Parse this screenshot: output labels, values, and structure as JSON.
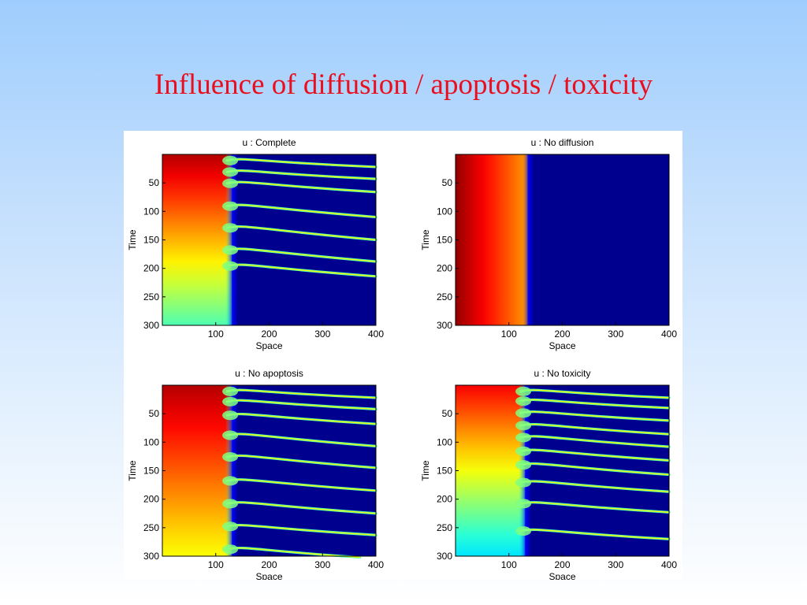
{
  "slide": {
    "title": "Influence of diffusion / apoptosis / toxicity",
    "title_color": "#e8101f"
  },
  "colormap": [
    "#00008f",
    "#0000ff",
    "#0080ff",
    "#00ffff",
    "#80ff80",
    "#ffff00",
    "#ff8000",
    "#ff0000",
    "#800000"
  ],
  "chart_data": [
    {
      "type": "heatmap",
      "title": "u : Complete",
      "xlabel": "Space",
      "ylabel": "Time",
      "xlim": [
        0,
        400
      ],
      "ylim": [
        0,
        300
      ],
      "xticks": [
        100,
        200,
        300,
        400
      ],
      "yticks": [
        50,
        100,
        150,
        200,
        250,
        300
      ],
      "y_reversed": true,
      "grid": false,
      "front_position": 130,
      "background_level": 0.0,
      "left_region": {
        "top_level": 0.95,
        "bottom_level": 0.45
      },
      "bands": [
        {
          "time": 15,
          "end_space": 400,
          "end_time": 22
        },
        {
          "time": 35,
          "end_space": 400,
          "end_time": 43
        },
        {
          "time": 55,
          "end_space": 400,
          "end_time": 66
        },
        {
          "time": 95,
          "end_space": 400,
          "end_time": 110
        },
        {
          "time": 133,
          "end_space": 400,
          "end_time": 150
        },
        {
          "time": 172,
          "end_space": 400,
          "end_time": 188
        },
        {
          "time": 200,
          "end_space": 400,
          "end_time": 214
        }
      ]
    },
    {
      "type": "heatmap",
      "title": "u : No diffusion",
      "xlabel": "Space",
      "ylabel": "Time",
      "xlim": [
        0,
        400
      ],
      "ylim": [
        0,
        300
      ],
      "xticks": [
        100,
        200,
        300,
        400
      ],
      "yticks": [
        50,
        100,
        150,
        200,
        250,
        300
      ],
      "y_reversed": true,
      "grid": false,
      "front_position": 135,
      "background_level": 0.0,
      "vertical_gradient": {
        "left_level": 0.98,
        "right_level": 0.72
      },
      "bands": []
    },
    {
      "type": "heatmap",
      "title": "u : No apoptosis",
      "xlabel": "Space",
      "ylabel": "Time",
      "xlim": [
        0,
        400
      ],
      "ylim": [
        0,
        300
      ],
      "xticks": [
        100,
        200,
        300,
        400
      ],
      "yticks": [
        50,
        100,
        150,
        200,
        250,
        300
      ],
      "y_reversed": true,
      "grid": false,
      "front_position": 130,
      "background_level": 0.0,
      "left_region": {
        "top_level": 0.95,
        "bottom_level": 0.62
      },
      "bands": [
        {
          "time": 15,
          "end_space": 400,
          "end_time": 22
        },
        {
          "time": 33,
          "end_space": 400,
          "end_time": 42
        },
        {
          "time": 57,
          "end_space": 400,
          "end_time": 68
        },
        {
          "time": 92,
          "end_space": 400,
          "end_time": 107
        },
        {
          "time": 130,
          "end_space": 400,
          "end_time": 145
        },
        {
          "time": 172,
          "end_space": 400,
          "end_time": 185
        },
        {
          "time": 212,
          "end_space": 400,
          "end_time": 225
        },
        {
          "time": 252,
          "end_space": 400,
          "end_time": 263
        },
        {
          "time": 292,
          "end_space": 370,
          "end_time": 302
        }
      ]
    },
    {
      "type": "heatmap",
      "title": "u : No toxicity",
      "xlabel": "Space",
      "ylabel": "Time",
      "xlim": [
        0,
        400
      ],
      "ylim": [
        0,
        300
      ],
      "xticks": [
        100,
        200,
        300,
        400
      ],
      "yticks": [
        50,
        100,
        150,
        200,
        250,
        300
      ],
      "y_reversed": true,
      "grid": false,
      "front_position": 130,
      "background_level": 0.0,
      "left_region": {
        "top_level": 0.88,
        "bottom_level": 0.35
      },
      "bands": [
        {
          "time": 15,
          "end_space": 400,
          "end_time": 22
        },
        {
          "time": 32,
          "end_space": 400,
          "end_time": 40
        },
        {
          "time": 53,
          "end_space": 400,
          "end_time": 62
        },
        {
          "time": 75,
          "end_space": 400,
          "end_time": 86
        },
        {
          "time": 96,
          "end_space": 400,
          "end_time": 108
        },
        {
          "time": 120,
          "end_space": 400,
          "end_time": 132
        },
        {
          "time": 144,
          "end_space": 400,
          "end_time": 157
        },
        {
          "time": 175,
          "end_space": 400,
          "end_time": 187
        },
        {
          "time": 212,
          "end_space": 400,
          "end_time": 223
        },
        {
          "time": 260,
          "end_space": 400,
          "end_time": 270
        }
      ]
    }
  ]
}
